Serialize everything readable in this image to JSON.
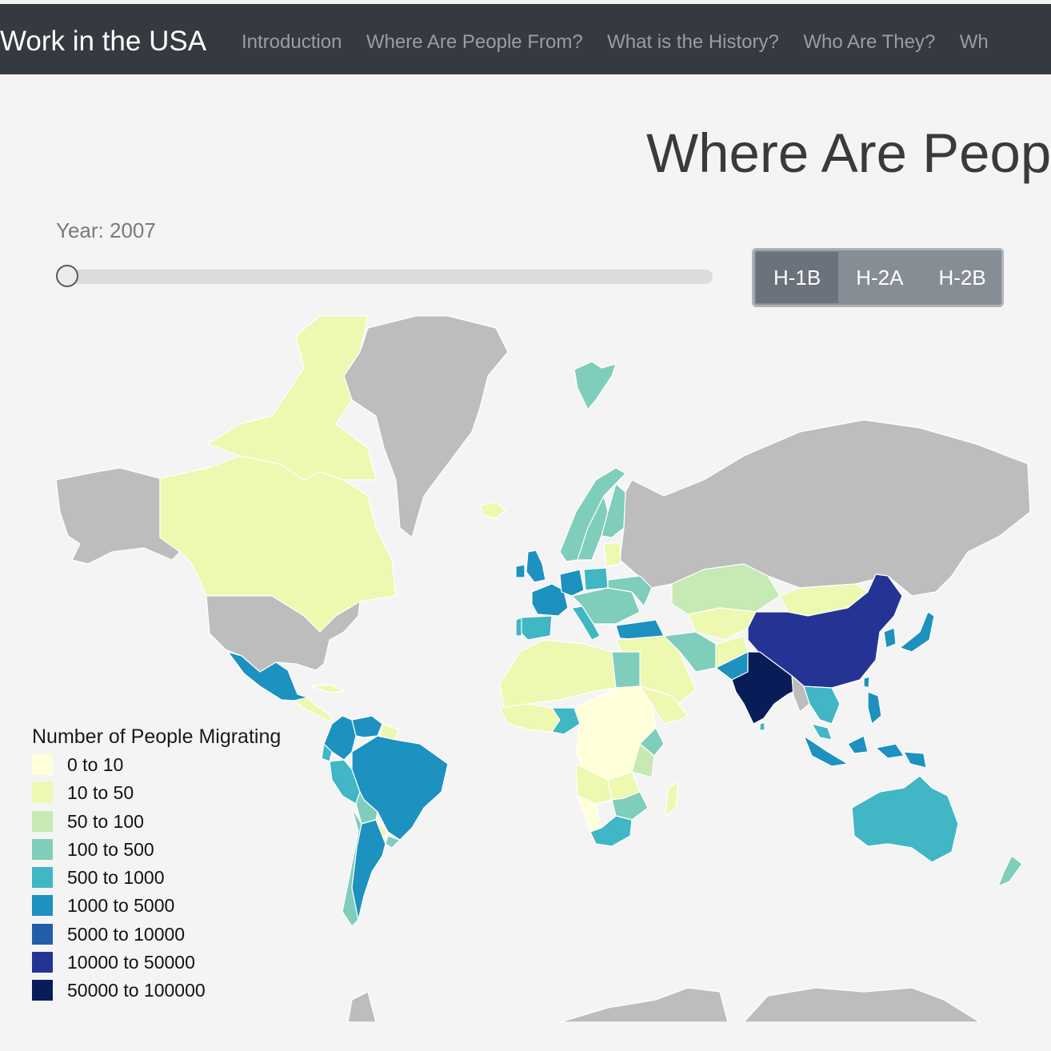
{
  "navbar": {
    "brand": "Work in the USA",
    "links": [
      {
        "label": "Introduction"
      },
      {
        "label": "Where Are People From?"
      },
      {
        "label": "What is the History?"
      },
      {
        "label": "Who Are They?"
      },
      {
        "label": "Wh"
      }
    ]
  },
  "page": {
    "title": "Where Are Peop"
  },
  "year_slider": {
    "label": "Year: 2007",
    "value": 2007,
    "progress": 0
  },
  "visa_buttons": {
    "options": [
      {
        "label": "H-1B",
        "active": true
      },
      {
        "label": "H-2A",
        "active": false
      },
      {
        "label": "H-2B",
        "active": false
      }
    ]
  },
  "legend": {
    "title": "Number of People Migrating",
    "items": [
      {
        "label": "0 to 10",
        "color": "#ffffd9"
      },
      {
        "label": "10 to 50",
        "color": "#edf8b1"
      },
      {
        "label": "50 to 100",
        "color": "#c7e9b4"
      },
      {
        "label": "100 to 500",
        "color": "#7fcdbb"
      },
      {
        "label": "500 to 1000",
        "color": "#41b6c4"
      },
      {
        "label": "1000 to 5000",
        "color": "#1d91c0"
      },
      {
        "label": "5000 to 10000",
        "color": "#225ea8"
      },
      {
        "label": "10000 to 50000",
        "color": "#253494"
      },
      {
        "label": "50000 to 100000",
        "color": "#081d58"
      }
    ],
    "no_data_color": "#bdbdbd"
  }
}
